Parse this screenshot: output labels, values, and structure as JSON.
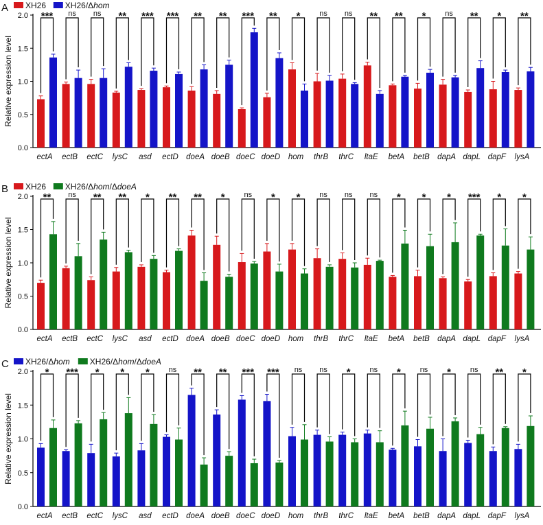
{
  "chart_data": [
    {
      "type": "bar",
      "panel_label": "A",
      "ylabel": "Relative expression level",
      "ylim": [
        0,
        2.0
      ],
      "yticks": [
        "0.0",
        "0.5",
        "1.0",
        "1.5",
        "2.0"
      ],
      "categories": [
        "ectA",
        "ectB",
        "ectC",
        "lysC",
        "asd",
        "ectD",
        "doeA",
        "doeB",
        "doeC",
        "doeD",
        "hom",
        "thrB",
        "thrC",
        "ltaE",
        "betA",
        "betB",
        "dapA",
        "dapL",
        "dapF",
        "lysA"
      ],
      "series": [
        {
          "name": "XH26",
          "color": "#d7191c",
          "values": [
            0.73,
            0.96,
            0.96,
            0.83,
            0.87,
            0.91,
            0.86,
            0.81,
            0.58,
            0.76,
            1.18,
            1.0,
            1.04,
            1.24,
            0.94,
            0.89,
            0.95,
            0.84,
            0.88,
            0.87
          ],
          "errors": [
            0.05,
            0.03,
            0.07,
            0.02,
            0.02,
            0.02,
            0.06,
            0.05,
            0.02,
            0.06,
            0.1,
            0.12,
            0.07,
            0.05,
            0.02,
            0.08,
            0.08,
            0.03,
            0.12,
            0.03
          ]
        },
        {
          "name": "XH26/Δhom",
          "color": "#1414c8",
          "values": [
            1.36,
            1.05,
            1.05,
            1.22,
            1.16,
            1.11,
            1.18,
            1.25,
            1.74,
            1.35,
            0.86,
            1.01,
            0.96,
            0.81,
            1.07,
            1.13,
            1.06,
            1.2,
            1.14,
            1.15
          ],
          "errors": [
            0.05,
            0.12,
            0.14,
            0.06,
            0.04,
            0.03,
            0.07,
            0.07,
            0.06,
            0.08,
            0.1,
            0.08,
            0.02,
            0.05,
            0.02,
            0.05,
            0.03,
            0.11,
            0.03,
            0.06
          ]
        }
      ],
      "significance": [
        "***",
        "ns",
        "ns",
        "**",
        "***",
        "***",
        "**",
        "**",
        "***",
        "**",
        "*",
        "ns",
        "ns",
        "**",
        "**",
        "*",
        "ns",
        "**",
        "*",
        "**"
      ]
    },
    {
      "type": "bar",
      "panel_label": "B",
      "ylabel": "Relative expression level",
      "ylim": [
        0,
        2.0
      ],
      "yticks": [
        "0.0",
        "0.5",
        "1.0",
        "1.5",
        "2.0"
      ],
      "categories": [
        "ectA",
        "ectB",
        "ectC",
        "lysC",
        "asd",
        "ectD",
        "doeA",
        "doeB",
        "doeC",
        "doeD",
        "hom",
        "thrB",
        "thrC",
        "ltaE",
        "betA",
        "betB",
        "dapA",
        "dapL",
        "dapF",
        "lysA"
      ],
      "series": [
        {
          "name": "XH26",
          "color": "#d7191c",
          "values": [
            0.7,
            0.92,
            0.74,
            0.87,
            0.94,
            0.86,
            1.41,
            1.27,
            1.01,
            1.17,
            1.2,
            1.07,
            1.06,
            0.97,
            0.79,
            0.8,
            0.77,
            0.72,
            0.8,
            0.84
          ],
          "errors": [
            0.04,
            0.03,
            0.05,
            0.06,
            0.03,
            0.03,
            0.08,
            0.13,
            0.13,
            0.12,
            0.09,
            0.14,
            0.09,
            0.1,
            0.02,
            0.09,
            0.02,
            0.03,
            0.05,
            0.03
          ]
        },
        {
          "name": "XH26/Δhom/ΔdoeA",
          "color": "#0f7a1e",
          "values": [
            1.43,
            1.1,
            1.35,
            1.16,
            1.06,
            1.18,
            0.73,
            0.79,
            0.99,
            0.87,
            0.84,
            0.94,
            0.93,
            1.03,
            1.29,
            1.25,
            1.31,
            1.41,
            1.26,
            1.2
          ],
          "errors": [
            0.19,
            0.19,
            0.11,
            0.03,
            0.05,
            0.03,
            0.12,
            0.04,
            0.03,
            0.11,
            0.07,
            0.03,
            0.07,
            0.01,
            0.2,
            0.18,
            0.29,
            0.02,
            0.25,
            0.19
          ]
        }
      ],
      "significance": [
        "**",
        "ns",
        "**",
        "**",
        "*",
        "**",
        "**",
        "*",
        "ns",
        "*",
        "*",
        "ns",
        "ns",
        "ns",
        "*",
        "*",
        "*",
        "***",
        "*",
        "*"
      ]
    },
    {
      "type": "bar",
      "panel_label": "C",
      "ylabel": "Relative expression level",
      "ylim": [
        0,
        2.0
      ],
      "yticks": [
        "0.0",
        "0.5",
        "1.0",
        "1.5",
        "2.0"
      ],
      "categories": [
        "ectA",
        "ectB",
        "ectC",
        "lysC",
        "asd",
        "ectD",
        "doeA",
        "doeB",
        "doeC",
        "doeD",
        "hom",
        "thrB",
        "thrC",
        "ltaE",
        "betA",
        "betB",
        "dapA",
        "dapL",
        "dapF",
        "lysA"
      ],
      "series": [
        {
          "name": "XH26/Δhom",
          "color": "#1414c8",
          "values": [
            0.87,
            0.82,
            0.79,
            0.74,
            0.83,
            1.03,
            1.65,
            1.36,
            1.58,
            1.56,
            1.04,
            1.06,
            1.06,
            1.08,
            0.84,
            0.89,
            0.82,
            0.94,
            0.82,
            0.85
          ],
          "errors": [
            0.06,
            0.02,
            0.13,
            0.05,
            0.1,
            0.03,
            0.1,
            0.07,
            0.06,
            0.1,
            0.13,
            0.07,
            0.04,
            0.05,
            0.02,
            0.1,
            0.18,
            0.04,
            0.06,
            0.07
          ]
        },
        {
          "name": "XH26/Δhom/ΔdoeA",
          "color": "#0f7a1e",
          "values": [
            1.16,
            1.23,
            1.29,
            1.38,
            1.22,
            0.99,
            0.62,
            0.75,
            0.64,
            0.65,
            0.99,
            0.96,
            0.95,
            0.95,
            1.2,
            1.15,
            1.26,
            1.07,
            1.16,
            1.19
          ],
          "errors": [
            0.12,
            0.04,
            0.1,
            0.23,
            0.14,
            0.17,
            0.1,
            0.06,
            0.06,
            0.03,
            0.22,
            0.07,
            0.05,
            0.17,
            0.21,
            0.17,
            0.05,
            0.1,
            0.02,
            0.15
          ]
        }
      ],
      "significance": [
        "*",
        "***",
        "*",
        "*",
        "*",
        "ns",
        "**",
        "**",
        "***",
        "***",
        "ns",
        "ns",
        "*",
        "ns",
        "*",
        "ns",
        "*",
        "ns",
        "**",
        "*"
      ]
    }
  ]
}
